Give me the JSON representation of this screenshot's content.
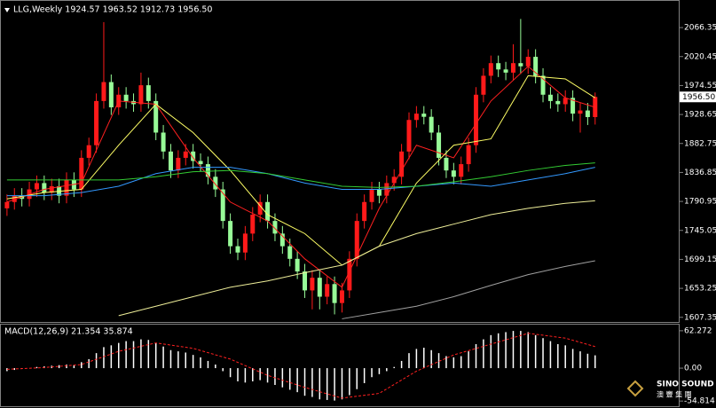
{
  "header": "LLG,Weekly  1924.57 1963.52 1912.73 1956.50",
  "chart_data": [
    {
      "type": "candlestick",
      "up_color": "#ff1a1a",
      "down_color": "#98fb98",
      "open": [
        1780,
        1790,
        1800,
        1795,
        1810,
        1820,
        1805,
        1815,
        1800,
        1825,
        1810,
        1860,
        1880,
        1950,
        1980,
        1940,
        1960,
        1950,
        1945,
        1975,
        1950,
        1900,
        1870,
        1840,
        1860,
        1870,
        1855,
        1850,
        1830,
        1810,
        1760,
        1720,
        1710,
        1740,
        1770,
        1790,
        1760,
        1740,
        1720,
        1700,
        1680,
        1650,
        1670,
        1640,
        1660,
        1630,
        1650,
        1700,
        1760,
        1790,
        1810,
        1800,
        1820,
        1830,
        1870,
        1920,
        1930,
        1925,
        1900,
        1860,
        1840,
        1830,
        1850,
        1880,
        1960,
        1990,
        2010,
        2000,
        1995,
        2010,
        2005,
        2020,
        1990,
        1960,
        1950,
        1945,
        1955,
        1930,
        1935,
        1924.57
      ],
      "high": [
        1802,
        1812,
        1812,
        1822,
        1832,
        1832,
        1827,
        1827,
        1837,
        1837,
        1872,
        1892,
        1962,
        2075,
        1992,
        1972,
        1972,
        1962,
        1995,
        1987,
        1962,
        1912,
        1882,
        1872,
        1882,
        1882,
        1867,
        1862,
        1842,
        1822,
        1772,
        1732,
        1752,
        1782,
        1802,
        1802,
        1772,
        1752,
        1732,
        1712,
        1692,
        1682,
        1682,
        1672,
        1672,
        1662,
        1712,
        1772,
        1802,
        1822,
        1822,
        1832,
        1842,
        1882,
        1932,
        1942,
        1942,
        1937,
        1912,
        1872,
        1852,
        1862,
        1892,
        1972,
        2002,
        2022,
        2022,
        2012,
        2040,
        2080,
        2032,
        2032,
        2002,
        1972,
        1962,
        1967,
        1967,
        1947,
        1947,
        1963.52
      ],
      "low": [
        1768,
        1778,
        1783,
        1783,
        1798,
        1793,
        1793,
        1788,
        1788,
        1798,
        1798,
        1848,
        1868,
        1938,
        1928,
        1928,
        1938,
        1933,
        1933,
        1938,
        1888,
        1858,
        1828,
        1828,
        1848,
        1843,
        1838,
        1818,
        1798,
        1748,
        1708,
        1698,
        1698,
        1728,
        1758,
        1748,
        1728,
        1708,
        1688,
        1668,
        1638,
        1620,
        1620,
        1628,
        1612,
        1615,
        1638,
        1688,
        1748,
        1778,
        1788,
        1788,
        1808,
        1818,
        1858,
        1908,
        1913,
        1888,
        1848,
        1828,
        1818,
        1818,
        1838,
        1868,
        1948,
        1978,
        1988,
        1983,
        1983,
        1993,
        1993,
        1978,
        1948,
        1938,
        1933,
        1933,
        1918,
        1900,
        1912,
        1912.73
      ],
      "close": [
        1790,
        1800,
        1795,
        1810,
        1820,
        1805,
        1815,
        1800,
        1825,
        1810,
        1860,
        1880,
        1950,
        1980,
        1940,
        1960,
        1950,
        1945,
        1975,
        1950,
        1900,
        1870,
        1840,
        1860,
        1870,
        1855,
        1850,
        1830,
        1810,
        1760,
        1720,
        1710,
        1740,
        1770,
        1790,
        1760,
        1740,
        1720,
        1700,
        1680,
        1650,
        1670,
        1640,
        1660,
        1630,
        1650,
        1700,
        1760,
        1790,
        1810,
        1800,
        1820,
        1830,
        1870,
        1920,
        1930,
        1925,
        1900,
        1860,
        1840,
        1830,
        1850,
        1880,
        1960,
        1990,
        2010,
        2000,
        1995,
        2010,
        2005,
        2020,
        1990,
        1960,
        1950,
        1945,
        1955,
        1930,
        1935,
        1924.57,
        1956.5
      ],
      "ma_x": [
        0,
        5,
        10,
        15,
        20,
        25,
        30,
        35,
        40,
        45,
        50,
        55,
        60,
        65,
        70,
        75,
        79
      ],
      "series": [
        {
          "color": "#ff2020",
          "values": [
            1790,
            1810,
            1820,
            1950,
            1945,
            1860,
            1790,
            1760,
            1700,
            1655,
            1780,
            1880,
            1860,
            1950,
            2005,
            1955,
            1940
          ]
        },
        {
          "color": "#ffff66",
          "values": [
            1795,
            1805,
            1810,
            1880,
            1945,
            1900,
            1840,
            1770,
            1740,
            1690,
            1720,
            1820,
            1880,
            1890,
            1990,
            1985,
            1955
          ]
        },
        {
          "color": "#3399ff",
          "values": [
            1800,
            1800,
            1805,
            1815,
            1835,
            1845,
            1845,
            1835,
            1820,
            1810,
            1810,
            1815,
            1820,
            1815,
            1825,
            1835,
            1845
          ]
        },
        {
          "color": "#33cc33",
          "values": [
            1825,
            1825,
            1825,
            1825,
            1830,
            1838,
            1840,
            1835,
            1825,
            1815,
            1813,
            1815,
            1822,
            1830,
            1840,
            1848,
            1852
          ]
        },
        {
          "color": "#eeee99",
          "values": [
            null,
            null,
            null,
            1610,
            1625,
            1640,
            1655,
            1665,
            1678,
            1690,
            1720,
            1740,
            1755,
            1770,
            1780,
            1788,
            1792
          ]
        },
        {
          "color": "#a0a0a0",
          "values": [
            null,
            null,
            null,
            null,
            null,
            null,
            null,
            null,
            null,
            1605,
            1615,
            1625,
            1640,
            1658,
            1675,
            1688,
            1697
          ]
        }
      ],
      "xlim": [
        -0.7,
        80.1
      ],
      "ylim": [
        1600,
        2103
      ],
      "yticks": [
        2066.35,
        2020.45,
        1974.55,
        1928.65,
        1882.75,
        1836.85,
        1790.95,
        1745.05,
        1699.15,
        1653.25,
        1607.35
      ],
      "price_label": {
        "value": 1956.5,
        "label": "1956.50"
      }
    },
    {
      "type": "macd",
      "title": "MACD(12,26,9) 21.354 35.874",
      "bar_color": "#ffffff",
      "signal_color": "#ff2020",
      "values": [
        -5,
        -3,
        -1,
        0,
        2,
        3,
        4,
        5,
        6,
        5,
        10,
        15,
        25,
        35,
        38,
        42,
        45,
        45,
        48,
        47,
        42,
        36,
        30,
        28,
        26,
        22,
        18,
        12,
        6,
        -5,
        -15,
        -22,
        -24,
        -22,
        -20,
        -24,
        -28,
        -32,
        -36,
        -40,
        -46,
        -48,
        -52,
        -53,
        -54,
        -52,
        -45,
        -35,
        -25,
        -15,
        -10,
        -5,
        2,
        12,
        25,
        32,
        34,
        30,
        25,
        20,
        18,
        20,
        28,
        40,
        48,
        55,
        58,
        60,
        62,
        62,
        60,
        55,
        50,
        45,
        40,
        38,
        32,
        28,
        24,
        21.354
      ],
      "signal_x": [
        0,
        5,
        10,
        15,
        20,
        25,
        30,
        35,
        40,
        45,
        50,
        55,
        60,
        65,
        70,
        75,
        79
      ],
      "signal": [
        -2,
        1,
        6,
        28,
        42,
        33,
        15,
        -12,
        -32,
        -50,
        -42,
        -5,
        22,
        40,
        58,
        50,
        35.874
      ],
      "xlim": [
        -0.7,
        80.1
      ],
      "ylim": [
        -59,
        71
      ],
      "yticks": [
        62.272,
        {
          "value": 0,
          "label": "0.00"
        },
        -54.814
      ]
    }
  ],
  "logo": {
    "name": "SINO SOUND",
    "subtitle": "澳 豐 集 團"
  }
}
